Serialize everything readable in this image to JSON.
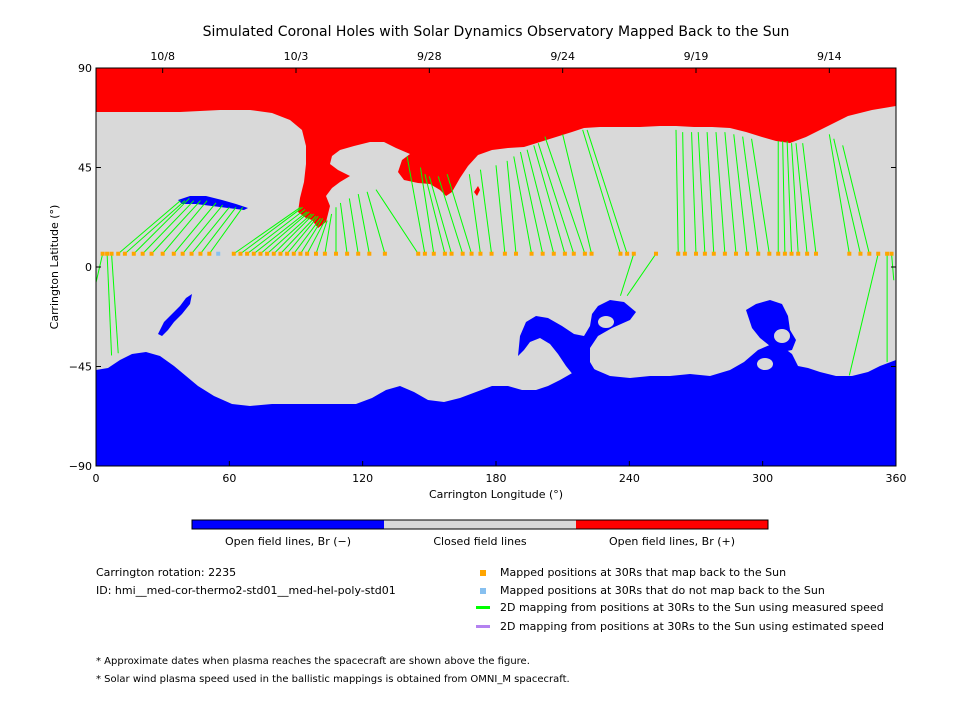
{
  "chart_data": {
    "type": "map",
    "title": "Simulated Coronal Holes with Solar Dynamics Observatory Mapped Back to the Sun",
    "xlabel": "Carrington Longitude (°)",
    "ylabel": "Carrington Latitude (°)",
    "xlim": [
      0,
      360
    ],
    "ylim": [
      -90,
      90
    ],
    "x_ticks": [
      0,
      60,
      120,
      180,
      240,
      300,
      360
    ],
    "y_ticks": [
      -90,
      -45,
      0,
      45,
      90
    ],
    "x_tick_labels": [
      "0",
      "60",
      "120",
      "180",
      "240",
      "300",
      "360"
    ],
    "y_tick_labels": [
      "−90",
      "−45",
      "0",
      "45",
      "90"
    ],
    "top_axis": {
      "dates": [
        "10/8",
        "10/3",
        "9/28",
        "9/24",
        "9/19",
        "9/14"
      ],
      "longitudes": [
        30,
        90,
        150,
        210,
        270,
        330
      ]
    },
    "colors": {
      "open_negative": "#0000ff",
      "closed": "#d9d9d9",
      "open_positive": "#ff0000",
      "mapped": "#ffa500",
      "not_mapped": "#87c0f0",
      "measured_speed": "#00ff00",
      "estimated_speed": "#b482f0"
    },
    "colorbar": {
      "labels": [
        "Open field lines, Br (−)",
        "Closed field lines",
        "Open field lines, Br (+)"
      ]
    },
    "mapped_positions": [
      {
        "lon": 3,
        "lat": 6,
        "src_lon": 0,
        "src_lat": -7
      },
      {
        "lon": 5,
        "lat": 6,
        "src_lon": 7,
        "src_lat": -40
      },
      {
        "lon": 7,
        "lat": 6,
        "src_lon": 10,
        "src_lat": -39
      },
      {
        "lon": 10,
        "lat": 6,
        "src_lon": 38,
        "src_lat": 30
      },
      {
        "lon": 13,
        "lat": 6,
        "src_lon": 40,
        "src_lat": 30
      },
      {
        "lon": 17,
        "lat": 6,
        "src_lon": 42,
        "src_lat": 31
      },
      {
        "lon": 21,
        "lat": 6,
        "src_lon": 44,
        "src_lat": 30
      },
      {
        "lon": 25,
        "lat": 6,
        "src_lon": 47,
        "src_lat": 30
      },
      {
        "lon": 30,
        "lat": 6,
        "src_lon": 50,
        "src_lat": 30
      },
      {
        "lon": 35,
        "lat": 6,
        "src_lon": 54,
        "src_lat": 29
      },
      {
        "lon": 39,
        "lat": 6,
        "src_lon": 57,
        "src_lat": 28
      },
      {
        "lon": 43,
        "lat": 6,
        "src_lon": 60,
        "src_lat": 27
      },
      {
        "lon": 47,
        "lat": 6,
        "src_lon": 63,
        "src_lat": 27
      },
      {
        "lon": 51,
        "lat": 6,
        "src_lon": 66,
        "src_lat": 27
      },
      {
        "lon": 55,
        "lat": 6,
        "src_lon": 55,
        "src_lat": 6,
        "mapped": false
      },
      {
        "lon": 62,
        "lat": 6,
        "src_lon": 92,
        "src_lat": 27
      },
      {
        "lon": 65,
        "lat": 6,
        "src_lon": 93,
        "src_lat": 27
      },
      {
        "lon": 68,
        "lat": 6,
        "src_lon": 94,
        "src_lat": 26
      },
      {
        "lon": 71,
        "lat": 6,
        "src_lon": 95,
        "src_lat": 25
      },
      {
        "lon": 74,
        "lat": 6,
        "src_lon": 96,
        "src_lat": 25
      },
      {
        "lon": 77,
        "lat": 6,
        "src_lon": 97,
        "src_lat": 24
      },
      {
        "lon": 80,
        "lat": 6,
        "src_lon": 98,
        "src_lat": 24
      },
      {
        "lon": 83,
        "lat": 6,
        "src_lon": 99,
        "src_lat": 23
      },
      {
        "lon": 86,
        "lat": 6,
        "src_lon": 100,
        "src_lat": 23
      },
      {
        "lon": 89,
        "lat": 6,
        "src_lon": 101,
        "src_lat": 22
      },
      {
        "lon": 92,
        "lat": 6,
        "src_lon": 102,
        "src_lat": 22
      },
      {
        "lon": 95,
        "lat": 6,
        "src_lon": 103,
        "src_lat": 21
      },
      {
        "lon": 99,
        "lat": 6,
        "src_lon": 104,
        "src_lat": 21
      },
      {
        "lon": 103,
        "lat": 6,
        "src_lon": 106,
        "src_lat": 24
      },
      {
        "lon": 108,
        "lat": 6,
        "src_lon": 108,
        "src_lat": 27
      },
      {
        "lon": 113,
        "lat": 6,
        "src_lon": 110,
        "src_lat": 29
      },
      {
        "lon": 118,
        "lat": 6,
        "src_lon": 114,
        "src_lat": 31
      },
      {
        "lon": 123,
        "lat": 6,
        "src_lon": 118,
        "src_lat": 33
      },
      {
        "lon": 130,
        "lat": 6,
        "src_lon": 122,
        "src_lat": 34
      },
      {
        "lon": 145,
        "lat": 6,
        "src_lon": 126,
        "src_lat": 35
      },
      {
        "lon": 148,
        "lat": 6,
        "src_lon": 140,
        "src_lat": 50
      },
      {
        "lon": 152,
        "lat": 6,
        "src_lon": 146,
        "src_lat": 45
      },
      {
        "lon": 157,
        "lat": 6,
        "src_lon": 148,
        "src_lat": 42
      },
      {
        "lon": 160,
        "lat": 6,
        "src_lon": 150,
        "src_lat": 41
      },
      {
        "lon": 165,
        "lat": 6,
        "src_lon": 154,
        "src_lat": 41
      },
      {
        "lon": 169,
        "lat": 6,
        "src_lon": 158,
        "src_lat": 42
      },
      {
        "lon": 173,
        "lat": 6,
        "src_lon": 168,
        "src_lat": 42
      },
      {
        "lon": 178,
        "lat": 6,
        "src_lon": 173,
        "src_lat": 44
      },
      {
        "lon": 184,
        "lat": 6,
        "src_lon": 180,
        "src_lat": 46
      },
      {
        "lon": 189,
        "lat": 6,
        "src_lon": 185,
        "src_lat": 48
      },
      {
        "lon": 196,
        "lat": 6,
        "src_lon": 188,
        "src_lat": 50
      },
      {
        "lon": 201,
        "lat": 6,
        "src_lon": 191,
        "src_lat": 52
      },
      {
        "lon": 206,
        "lat": 6,
        "src_lon": 194,
        "src_lat": 53
      },
      {
        "lon": 211,
        "lat": 6,
        "src_lon": 197,
        "src_lat": 55
      },
      {
        "lon": 215,
        "lat": 6,
        "src_lon": 199,
        "src_lat": 56
      },
      {
        "lon": 220,
        "lat": 6,
        "src_lon": 202,
        "src_lat": 59
      },
      {
        "lon": 223,
        "lat": 6,
        "src_lon": 210,
        "src_lat": 60
      },
      {
        "lon": 236,
        "lat": 6,
        "src_lon": 219,
        "src_lat": 62
      },
      {
        "lon": 239,
        "lat": 6,
        "src_lon": 221,
        "src_lat": 62
      },
      {
        "lon": 242,
        "lat": 6,
        "src_lon": 236,
        "src_lat": -13
      },
      {
        "lon": 252,
        "lat": 6,
        "src_lon": 239,
        "src_lat": -13
      },
      {
        "lon": 262,
        "lat": 6,
        "src_lon": 261,
        "src_lat": 62
      },
      {
        "lon": 265,
        "lat": 6,
        "src_lon": 264,
        "src_lat": 61
      },
      {
        "lon": 270,
        "lat": 6,
        "src_lon": 268,
        "src_lat": 61
      },
      {
        "lon": 274,
        "lat": 6,
        "src_lon": 271,
        "src_lat": 61
      },
      {
        "lon": 278,
        "lat": 6,
        "src_lon": 275,
        "src_lat": 61
      },
      {
        "lon": 283,
        "lat": 6,
        "src_lon": 279,
        "src_lat": 61
      },
      {
        "lon": 288,
        "lat": 6,
        "src_lon": 283,
        "src_lat": 61
      },
      {
        "lon": 293,
        "lat": 6,
        "src_lon": 287,
        "src_lat": 60
      },
      {
        "lon": 298,
        "lat": 6,
        "src_lon": 291,
        "src_lat": 59
      },
      {
        "lon": 303,
        "lat": 6,
        "src_lon": 295,
        "src_lat": 58
      },
      {
        "lon": 307,
        "lat": 6,
        "src_lon": 307,
        "src_lat": 57
      },
      {
        "lon": 310,
        "lat": 6,
        "src_lon": 309,
        "src_lat": 57
      },
      {
        "lon": 313,
        "lat": 6,
        "src_lon": 311,
        "src_lat": 57
      },
      {
        "lon": 316,
        "lat": 6,
        "src_lon": 313,
        "src_lat": 56
      },
      {
        "lon": 320,
        "lat": 6,
        "src_lon": 315,
        "src_lat": 56
      },
      {
        "lon": 324,
        "lat": 6,
        "src_lon": 318,
        "src_lat": 56
      },
      {
        "lon": 339,
        "lat": 6,
        "src_lon": 330,
        "src_lat": 60
      },
      {
        "lon": 344,
        "lat": 6,
        "src_lon": 332,
        "src_lat": 58
      },
      {
        "lon": 348,
        "lat": 6,
        "src_lon": 336,
        "src_lat": 55
      },
      {
        "lon": 352,
        "lat": 6,
        "src_lon": 339,
        "src_lat": -49
      },
      {
        "lon": 356,
        "lat": 6,
        "src_lon": 356,
        "src_lat": -43
      },
      {
        "lon": 358,
        "lat": 6,
        "src_lon": 359,
        "src_lat": -6
      }
    ],
    "info": {
      "carrington_rotation": "Carrington rotation: 2235",
      "id": "ID: hmi__med-cor-thermo2-std01__med-hel-poly-std01"
    },
    "legend": [
      {
        "kind": "square",
        "color": "#ffa500",
        "label": "Mapped positions at 30Rs that map back to the Sun"
      },
      {
        "kind": "square",
        "color": "#87c0f0",
        "label": "Mapped positions at 30Rs that do not map back to the Sun"
      },
      {
        "kind": "line",
        "color": "#00ff00",
        "label": "2D mapping from positions at 30Rs to the Sun using measured speed"
      },
      {
        "kind": "line",
        "color": "#b482f0",
        "label": "2D mapping from positions at 30Rs to the Sun using estimated speed"
      }
    ],
    "footnotes": [
      "* Approximate dates when plasma reaches the spacecraft are shown above the figure.",
      "* Solar wind plasma speed used in the ballistic mappings is obtained from OMNI_M spacecraft."
    ]
  }
}
